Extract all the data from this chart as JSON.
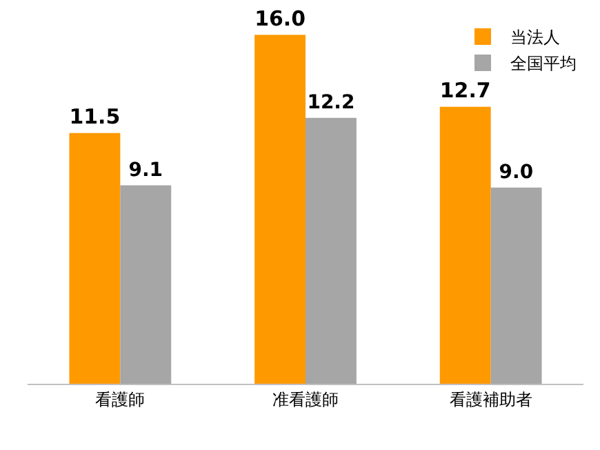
{
  "chart_data": {
    "type": "bar",
    "categories": [
      "看護師",
      "准看護師",
      "看護補助者"
    ],
    "series": [
      {
        "name": "当法人",
        "color": "#ff9900",
        "values": [
          11.5,
          16.0,
          12.7
        ],
        "value_labels": [
          "11.5",
          "16.0",
          "12.7"
        ]
      },
      {
        "name": "全国平均",
        "color": "#a6a6a6",
        "values": [
          9.1,
          12.2,
          9.0
        ],
        "value_labels": [
          "9.1",
          "12.2",
          "9.0"
        ]
      }
    ],
    "tick_labels": "x",
    "legend": "top right"
  }
}
